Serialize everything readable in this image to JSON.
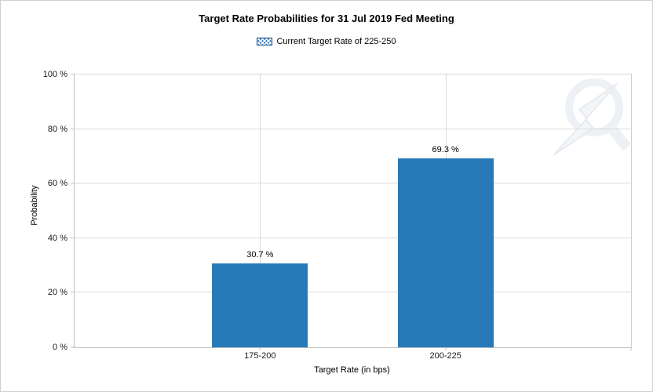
{
  "chart_data": {
    "type": "bar",
    "title": "Target Rate Probabilities for 31 Jul 2019 Fed Meeting",
    "legend": {
      "label": "Current Target Rate of 225-250",
      "swatch_color": "#3f80c0",
      "swatch_pattern": "diagonal-cross-hatch"
    },
    "legend_position": "top",
    "categories": [
      "175-200",
      "200-225"
    ],
    "values": [
      30.7,
      69.3
    ],
    "value_labels": [
      "30.7 %",
      "69.3 %"
    ],
    "xlabel": "Target Rate (in bps)",
    "ylabel": "Probability",
    "ylim": [
      0,
      100
    ],
    "yticks": [
      0,
      20,
      40,
      60,
      80,
      100
    ],
    "ytick_labels": [
      "0 %",
      "20 %",
      "40 %",
      "60 %",
      "80 %",
      "100 %"
    ],
    "bar_color": "#2879b8",
    "grid": true,
    "watermark_icon": "q-lightning-logo"
  }
}
